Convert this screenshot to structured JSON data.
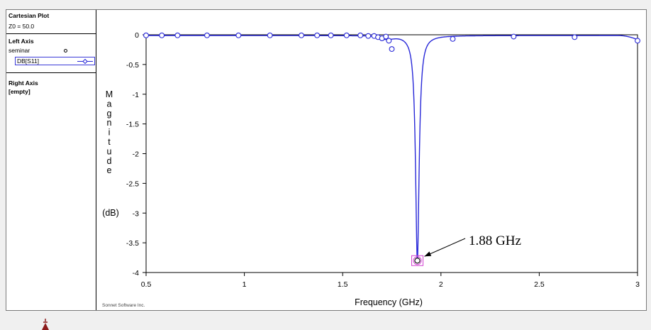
{
  "panel": {
    "title": "Cartesian Plot",
    "z0": "Z0 = 50.0",
    "left_axis_label": "Left Axis",
    "project": "seminar",
    "trace": "DB[S11]",
    "right_axis_label": "Right Axis",
    "right_axis_value": "[empty]"
  },
  "watermark": "Sonnet Software Inc.",
  "annotation": "1.88 GHz",
  "colors": {
    "trace": "#2828d8",
    "highlight": "#d040d0"
  },
  "chart_data": {
    "type": "line",
    "xlabel": "Frequency (GHz)",
    "ylabel_letters": [
      "M",
      "a",
      "g",
      "n",
      "i",
      "t",
      "u",
      "d",
      "e"
    ],
    "ylabel_unit": "(dB)",
    "xlim": [
      0.5,
      3
    ],
    "ylim": [
      -4,
      0
    ],
    "x_ticks": [
      "0.5",
      "1",
      "1.5",
      "2",
      "2.5",
      "3"
    ],
    "y_ticks": [
      "0",
      "-0.5",
      "-1",
      "-1.5",
      "-2",
      "-2.5",
      "-3",
      "-3.5",
      "-4"
    ],
    "grid": false,
    "series": [
      {
        "name": "DB[S11]",
        "resonance": {
          "x": 1.88,
          "y": -3.8,
          "half_width": 0.011
        },
        "sample_points_x": [
          0.5,
          0.58,
          0.66,
          0.81,
          0.97,
          1.13,
          1.29,
          1.37,
          1.44,
          1.52,
          1.59,
          1.63,
          1.66,
          1.68,
          1.7,
          1.72,
          1.735,
          1.75,
          1.88,
          2.06,
          2.37,
          2.68,
          3.0
        ],
        "sample_points_y": [
          -0.01,
          -0.01,
          -0.01,
          -0.01,
          -0.01,
          -0.01,
          -0.01,
          -0.01,
          -0.01,
          -0.01,
          -0.01,
          -0.02,
          -0.02,
          -0.04,
          -0.06,
          -0.03,
          -0.1,
          -0.24,
          -3.8,
          -0.07,
          -0.03,
          -0.04,
          -0.1
        ]
      }
    ]
  }
}
